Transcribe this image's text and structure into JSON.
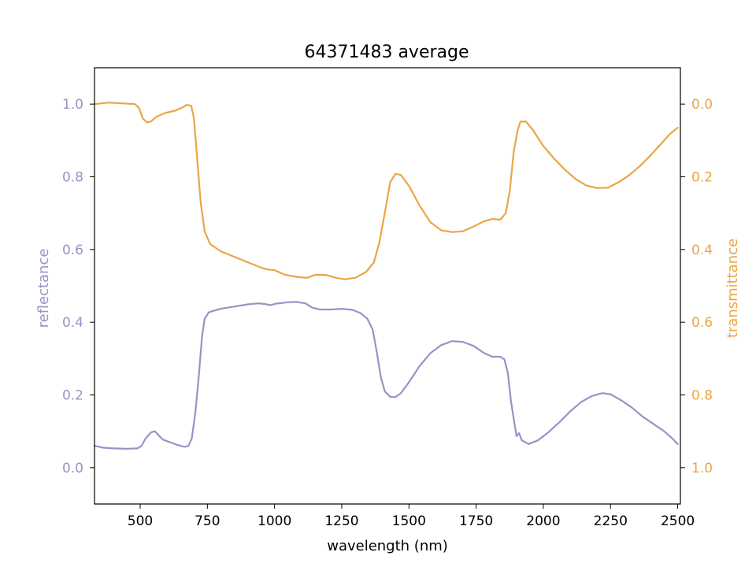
{
  "chart_data": {
    "type": "line",
    "title": "64371483 average",
    "xlabel": "wavelength (nm)",
    "ylabel": "reflectance",
    "ylabel_right": "transmittance",
    "xlim": [
      330,
      2510
    ],
    "ylim": [
      -0.1,
      1.1
    ],
    "ylim_right": [
      1.1,
      -0.1
    ],
    "right_axis_inverted": true,
    "grid": false,
    "x_ticks": [
      500,
      750,
      1000,
      1250,
      1500,
      1750,
      2000,
      2250,
      2500
    ],
    "y_ticks": [
      0.0,
      0.2,
      0.4,
      0.6,
      0.8,
      1.0
    ],
    "y_ticks_right": [
      0.0,
      0.2,
      0.4,
      0.6,
      0.8,
      1.0
    ],
    "x_tick_labels": [
      "500",
      "750",
      "1000",
      "1250",
      "1500",
      "1750",
      "2000",
      "2250",
      "2500"
    ],
    "y_tick_labels": [
      "0.0",
      "0.2",
      "0.4",
      "0.6",
      "0.8",
      "1.0"
    ],
    "y_tick_labels_right": [
      "0.0",
      "0.2",
      "0.4",
      "0.6",
      "0.8",
      "1.0"
    ],
    "colors": {
      "reflectance": "#9893c5",
      "transmittance": "#eba544"
    },
    "series": [
      {
        "axis": "left",
        "color": "#9893c5",
        "points": [
          [
            330,
            0.06
          ],
          [
            360,
            0.055
          ],
          [
            400,
            0.053
          ],
          [
            450,
            0.052
          ],
          [
            490,
            0.053
          ],
          [
            505,
            0.06
          ],
          [
            520,
            0.08
          ],
          [
            540,
            0.097
          ],
          [
            555,
            0.1
          ],
          [
            570,
            0.088
          ],
          [
            585,
            0.077
          ],
          [
            610,
            0.07
          ],
          [
            640,
            0.062
          ],
          [
            665,
            0.057
          ],
          [
            680,
            0.06
          ],
          [
            692,
            0.08
          ],
          [
            705,
            0.15
          ],
          [
            718,
            0.25
          ],
          [
            730,
            0.36
          ],
          [
            740,
            0.41
          ],
          [
            755,
            0.427
          ],
          [
            775,
            0.432
          ],
          [
            800,
            0.437
          ],
          [
            850,
            0.443
          ],
          [
            900,
            0.449
          ],
          [
            940,
            0.452
          ],
          [
            965,
            0.45
          ],
          [
            985,
            0.447
          ],
          [
            1005,
            0.451
          ],
          [
            1050,
            0.455
          ],
          [
            1080,
            0.456
          ],
          [
            1115,
            0.452
          ],
          [
            1140,
            0.44
          ],
          [
            1170,
            0.435
          ],
          [
            1210,
            0.435
          ],
          [
            1250,
            0.437
          ],
          [
            1290,
            0.434
          ],
          [
            1320,
            0.425
          ],
          [
            1345,
            0.41
          ],
          [
            1365,
            0.38
          ],
          [
            1380,
            0.32
          ],
          [
            1395,
            0.25
          ],
          [
            1410,
            0.21
          ],
          [
            1430,
            0.195
          ],
          [
            1450,
            0.194
          ],
          [
            1470,
            0.205
          ],
          [
            1500,
            0.235
          ],
          [
            1540,
            0.28
          ],
          [
            1580,
            0.315
          ],
          [
            1620,
            0.337
          ],
          [
            1660,
            0.348
          ],
          [
            1700,
            0.346
          ],
          [
            1740,
            0.335
          ],
          [
            1780,
            0.315
          ],
          [
            1810,
            0.305
          ],
          [
            1840,
            0.305
          ],
          [
            1855,
            0.298
          ],
          [
            1868,
            0.26
          ],
          [
            1880,
            0.18
          ],
          [
            1893,
            0.12
          ],
          [
            1900,
            0.087
          ],
          [
            1910,
            0.095
          ],
          [
            1920,
            0.075
          ],
          [
            1945,
            0.065
          ],
          [
            1980,
            0.075
          ],
          [
            2020,
            0.098
          ],
          [
            2060,
            0.125
          ],
          [
            2100,
            0.155
          ],
          [
            2140,
            0.18
          ],
          [
            2180,
            0.197
          ],
          [
            2220,
            0.205
          ],
          [
            2250,
            0.202
          ],
          [
            2290,
            0.185
          ],
          [
            2330,
            0.165
          ],
          [
            2370,
            0.14
          ],
          [
            2410,
            0.12
          ],
          [
            2450,
            0.1
          ],
          [
            2480,
            0.08
          ],
          [
            2500,
            0.065
          ]
        ]
      },
      {
        "axis": "right",
        "color": "#eba544",
        "points": [
          [
            330,
            0.0
          ],
          [
            380,
            -0.004
          ],
          [
            430,
            -0.002
          ],
          [
            480,
            0.0
          ],
          [
            495,
            0.01
          ],
          [
            510,
            0.04
          ],
          [
            525,
            0.05
          ],
          [
            540,
            0.048
          ],
          [
            560,
            0.035
          ],
          [
            590,
            0.025
          ],
          [
            630,
            0.018
          ],
          [
            655,
            0.01
          ],
          [
            675,
            0.002
          ],
          [
            690,
            0.005
          ],
          [
            700,
            0.04
          ],
          [
            712,
            0.15
          ],
          [
            725,
            0.27
          ],
          [
            740,
            0.35
          ],
          [
            760,
            0.385
          ],
          [
            800,
            0.405
          ],
          [
            850,
            0.42
          ],
          [
            900,
            0.435
          ],
          [
            950,
            0.45
          ],
          [
            975,
            0.455
          ],
          [
            1000,
            0.457
          ],
          [
            1040,
            0.47
          ],
          [
            1080,
            0.475
          ],
          [
            1120,
            0.478
          ],
          [
            1150,
            0.47
          ],
          [
            1190,
            0.47
          ],
          [
            1230,
            0.478
          ],
          [
            1260,
            0.482
          ],
          [
            1300,
            0.478
          ],
          [
            1340,
            0.462
          ],
          [
            1370,
            0.435
          ],
          [
            1390,
            0.38
          ],
          [
            1410,
            0.3
          ],
          [
            1430,
            0.215
          ],
          [
            1450,
            0.192
          ],
          [
            1470,
            0.195
          ],
          [
            1500,
            0.225
          ],
          [
            1540,
            0.28
          ],
          [
            1580,
            0.325
          ],
          [
            1620,
            0.347
          ],
          [
            1660,
            0.352
          ],
          [
            1700,
            0.35
          ],
          [
            1740,
            0.337
          ],
          [
            1780,
            0.322
          ],
          [
            1810,
            0.316
          ],
          [
            1840,
            0.318
          ],
          [
            1860,
            0.3
          ],
          [
            1875,
            0.24
          ],
          [
            1890,
            0.13
          ],
          [
            1905,
            0.07
          ],
          [
            1915,
            0.048
          ],
          [
            1935,
            0.048
          ],
          [
            1960,
            0.07
          ],
          [
            2000,
            0.115
          ],
          [
            2040,
            0.15
          ],
          [
            2080,
            0.18
          ],
          [
            2120,
            0.206
          ],
          [
            2160,
            0.224
          ],
          [
            2200,
            0.231
          ],
          [
            2240,
            0.23
          ],
          [
            2280,
            0.215
          ],
          [
            2320,
            0.195
          ],
          [
            2360,
            0.17
          ],
          [
            2400,
            0.14
          ],
          [
            2440,
            0.108
          ],
          [
            2470,
            0.083
          ],
          [
            2500,
            0.065
          ]
        ]
      }
    ]
  }
}
